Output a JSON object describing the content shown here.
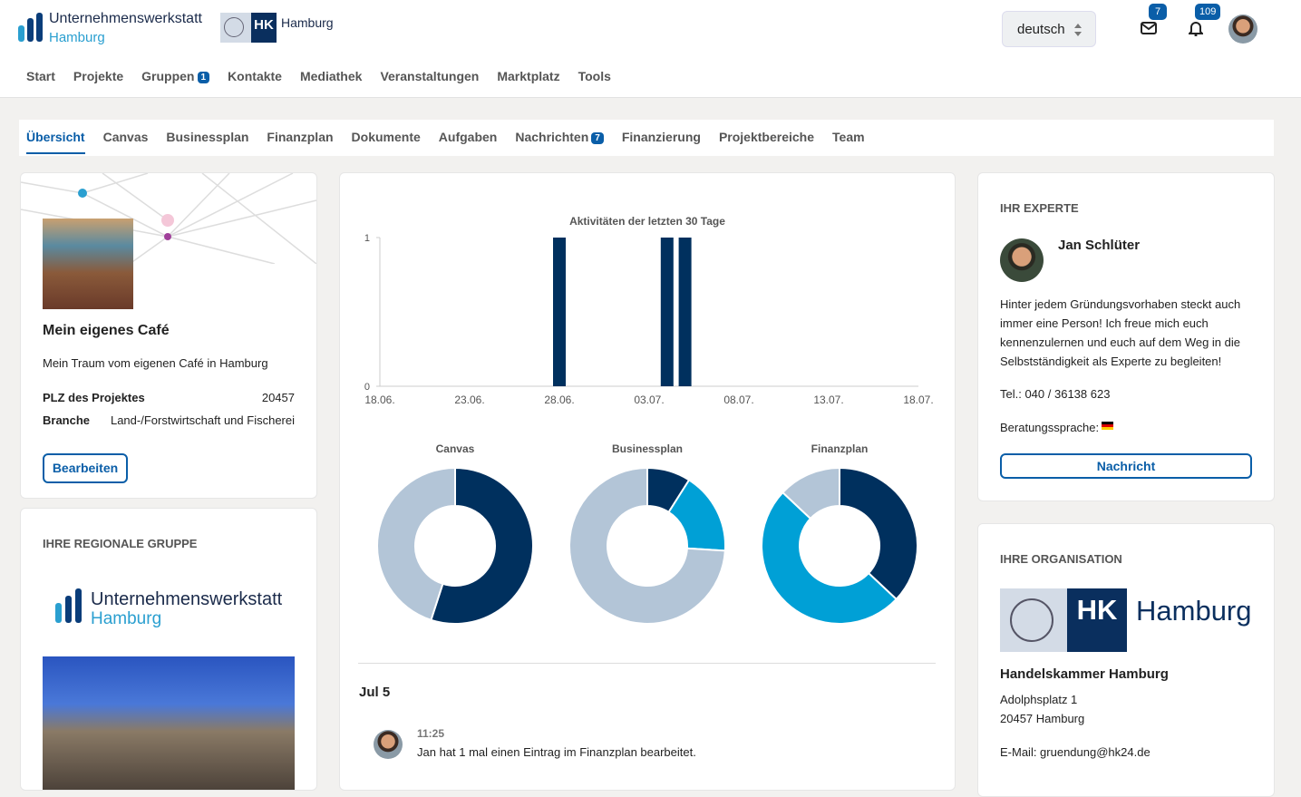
{
  "header": {
    "brand": {
      "name": "Unternehmenswerkstatt",
      "city": "Hamburg"
    },
    "partner": {
      "short": "HK",
      "city": "Hamburg"
    },
    "language": "deutsch",
    "messages_badge": 7,
    "notifications_badge": 109
  },
  "nav": [
    {
      "label": "Start"
    },
    {
      "label": "Projekte"
    },
    {
      "label": "Gruppen",
      "badge": 1
    },
    {
      "label": "Kontakte"
    },
    {
      "label": "Mediathek"
    },
    {
      "label": "Veranstaltungen"
    },
    {
      "label": "Marktplatz"
    },
    {
      "label": "Tools"
    }
  ],
  "tabs": [
    {
      "label": "Übersicht"
    },
    {
      "label": "Canvas"
    },
    {
      "label": "Businessplan"
    },
    {
      "label": "Finanzplan"
    },
    {
      "label": "Dokumente"
    },
    {
      "label": "Aufgaben"
    },
    {
      "label": "Nachrichten",
      "badge": 7
    },
    {
      "label": "Finanzierung"
    },
    {
      "label": "Projektbereiche"
    },
    {
      "label": "Team"
    }
  ],
  "project": {
    "title": "Mein eigenes Café",
    "description": "Mein Traum vom eigenen Café in Hamburg",
    "fields": [
      {
        "label": "PLZ des Projektes",
        "value": "20457"
      },
      {
        "label": "Branche",
        "value": "Land-/Forstwirtschaft und Fischerei"
      }
    ],
    "button": "Bearbeiten"
  },
  "group": {
    "heading": "IHRE REGIONALE GRUPPE",
    "brand": {
      "name": "Unternehmenswerkstatt",
      "city": "Hamburg"
    }
  },
  "chart_data": [
    {
      "type": "bar",
      "title": "Aktivitäten der letzten 30 Tage",
      "categories": [
        "18.06.",
        null,
        null,
        null,
        null,
        "23.06.",
        null,
        null,
        null,
        null,
        "28.06.",
        null,
        null,
        null,
        null,
        "03.07.",
        null,
        null,
        null,
        null,
        "08.07.",
        null,
        null,
        null,
        null,
        "13.07.",
        null,
        null,
        null,
        null,
        "18.07."
      ],
      "values": [
        0,
        0,
        0,
        0,
        0,
        0,
        0,
        0,
        0,
        0,
        1,
        0,
        0,
        0,
        0,
        0,
        1,
        1,
        0,
        0,
        0,
        0,
        0,
        0,
        0,
        0,
        0,
        0,
        0,
        0,
        0
      ],
      "color": "#00305e",
      "ylim": [
        0,
        1
      ],
      "yticks": [
        0,
        1
      ]
    },
    {
      "type": "donut",
      "title": "Canvas",
      "values": [
        55,
        45
      ],
      "colors": [
        "#00305e",
        "#b3c5d7"
      ]
    },
    {
      "type": "donut",
      "title": "Businessplan",
      "values": [
        9,
        17,
        74
      ],
      "colors": [
        "#00305e",
        "#00a0d6",
        "#b3c5d7"
      ]
    },
    {
      "type": "donut",
      "title": "Finanzplan",
      "values": [
        37,
        50,
        13
      ],
      "colors": [
        "#00305e",
        "#00a0d6",
        "#b3c5d7"
      ]
    }
  ],
  "timeline": {
    "date": "Jul 5",
    "entries": [
      {
        "time": "11:25",
        "text": "Jan hat 1 mal einen Eintrag im Finanzplan bearbeitet."
      }
    ]
  },
  "expert": {
    "heading": "IHR EXPERTE",
    "name": "Jan Schlüter",
    "bio": "Hinter jedem Gründungsvorhaben steckt auch immer eine Person! Ich freue mich euch kennenzulernen und euch auf dem Weg in die Selbstständigkeit als Experte zu begleiten!",
    "phone": "Tel.: 040 / 36138 623",
    "language_label": "Beratungssprache:",
    "button": "Nachricht"
  },
  "organization": {
    "heading": "IHRE ORGANISATION",
    "logo": {
      "short": "HK",
      "city": "Hamburg"
    },
    "name": "Handelskammer Hamburg",
    "street": "Adolphsplatz 1",
    "city": "20457 Hamburg",
    "email": "E-Mail: gruendung@hk24.de"
  }
}
